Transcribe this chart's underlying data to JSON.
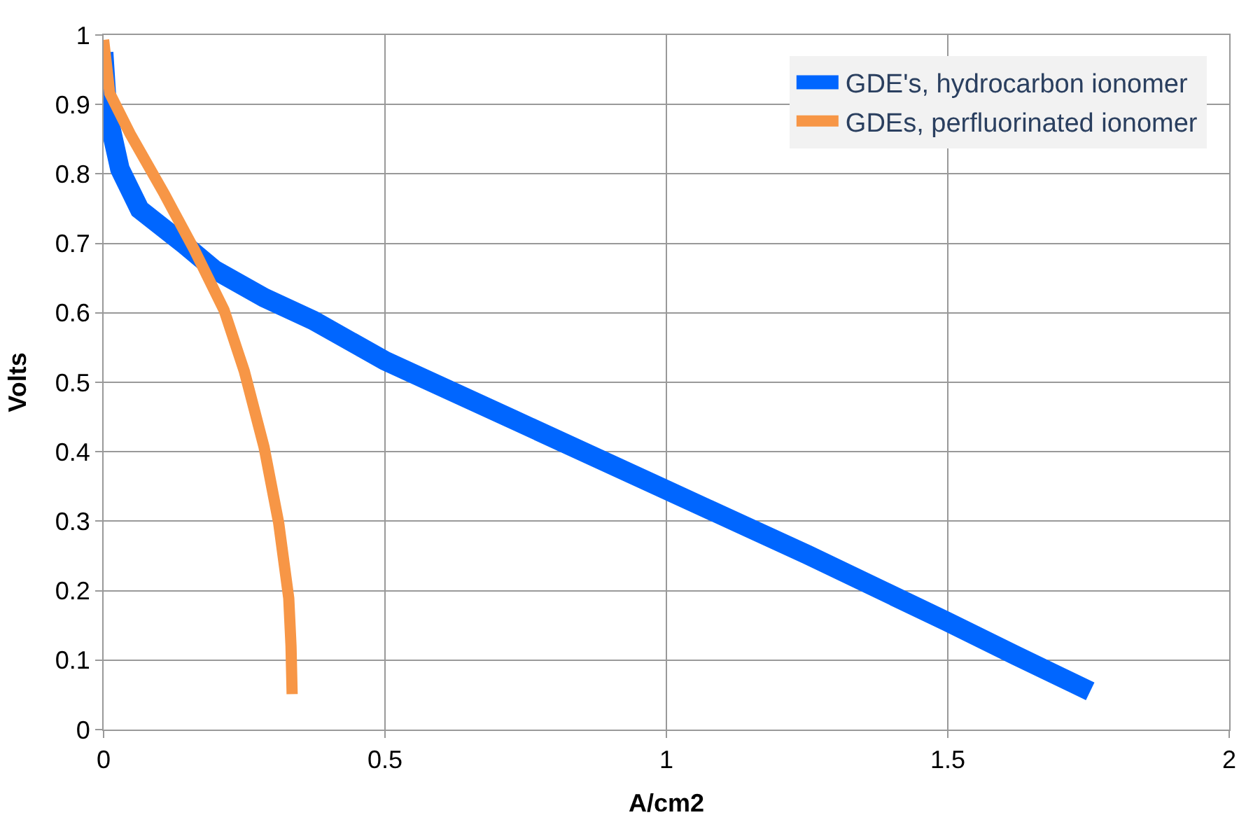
{
  "chart_data": {
    "type": "line",
    "xlabel": "A/cm2",
    "ylabel": "Volts",
    "xlim": [
      0,
      2
    ],
    "xticks": [
      0,
      0.5,
      1,
      1.5,
      2
    ],
    "ylim": [
      0,
      1
    ],
    "yticks": [
      0,
      0.1,
      0.2,
      0.3,
      0.4,
      0.5,
      0.6,
      0.7,
      0.8,
      0.9,
      1
    ],
    "grid": true,
    "legend": "top right",
    "line_style": "solid",
    "series": [
      {
        "name": "GDE's, hydrocarbon ionomer",
        "color": "#0066ff",
        "x": [
          0,
          0.007,
          0.029,
          0.064,
          0.144,
          0.197,
          0.285,
          0.373,
          0.5,
          0.726,
          1.0,
          1.25,
          1.497,
          1.62,
          1.753
        ],
        "values": [
          0.975,
          0.887,
          0.807,
          0.749,
          0.698,
          0.662,
          0.622,
          0.589,
          0.531,
          0.447,
          0.345,
          0.252,
          0.156,
          0.107,
          0.055
        ]
      },
      {
        "name": "GDEs, perfluorinated ionomer",
        "color": "#f79646",
        "x": [
          0,
          0.011,
          0.047,
          0.108,
          0.161,
          0.214,
          0.25,
          0.285,
          0.311,
          0.329,
          0.333,
          0.335
        ],
        "values": [
          0.993,
          0.916,
          0.858,
          0.771,
          0.691,
          0.604,
          0.516,
          0.407,
          0.298,
          0.189,
          0.12,
          0.051
        ]
      }
    ]
  }
}
